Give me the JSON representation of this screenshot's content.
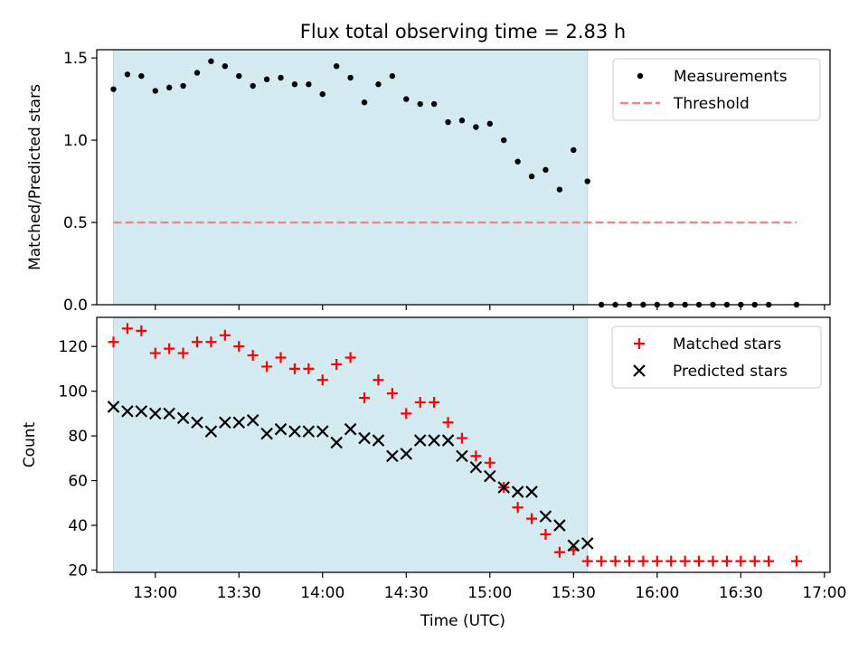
{
  "figure": {
    "title": "Flux total observing time = 2.83 h",
    "xlabel": "Time (UTC)",
    "x_ticks": [
      "13:00",
      "13:30",
      "14:00",
      "14:30",
      "15:00",
      "15:30",
      "16:00",
      "16:30",
      "17:00"
    ],
    "highlight_span": {
      "start": "12:45",
      "end": "15:35",
      "color": "#add8e6"
    }
  },
  "chart_data": [
    {
      "type": "scatter",
      "ylabel": "Matched/Predicted stars",
      "ylim": [
        0.0,
        1.55
      ],
      "xlim": [
        "12:39",
        "17:02"
      ],
      "y_ticks": [
        "0.0",
        "0.5",
        "1.0",
        "1.5"
      ],
      "legend_position": "top-right",
      "series": [
        {
          "name": "Measurements",
          "style": "dot",
          "color": "#000000",
          "points": [
            [
              "12:45",
              1.31
            ],
            [
              "12:50",
              1.4
            ],
            [
              "12:55",
              1.39
            ],
            [
              "13:00",
              1.3
            ],
            [
              "13:05",
              1.32
            ],
            [
              "13:10",
              1.33
            ],
            [
              "13:15",
              1.41
            ],
            [
              "13:20",
              1.48
            ],
            [
              "13:25",
              1.45
            ],
            [
              "13:30",
              1.39
            ],
            [
              "13:35",
              1.33
            ],
            [
              "13:40",
              1.37
            ],
            [
              "13:45",
              1.38
            ],
            [
              "13:50",
              1.34
            ],
            [
              "13:55",
              1.34
            ],
            [
              "14:00",
              1.28
            ],
            [
              "14:05",
              1.45
            ],
            [
              "14:10",
              1.38
            ],
            [
              "14:15",
              1.23
            ],
            [
              "14:20",
              1.34
            ],
            [
              "14:25",
              1.39
            ],
            [
              "14:30",
              1.25
            ],
            [
              "14:35",
              1.22
            ],
            [
              "14:40",
              1.22
            ],
            [
              "14:45",
              1.11
            ],
            [
              "14:50",
              1.12
            ],
            [
              "14:55",
              1.08
            ],
            [
              "15:00",
              1.1
            ],
            [
              "15:05",
              1.0
            ],
            [
              "15:10",
              0.87
            ],
            [
              "15:15",
              0.78
            ],
            [
              "15:20",
              0.82
            ],
            [
              "15:25",
              0.7
            ],
            [
              "15:30",
              0.94
            ],
            [
              "15:35",
              0.75
            ],
            [
              "15:40",
              0.0
            ],
            [
              "15:45",
              0.0
            ],
            [
              "15:50",
              0.0
            ],
            [
              "15:55",
              0.0
            ],
            [
              "16:00",
              0.0
            ],
            [
              "16:05",
              0.0
            ],
            [
              "16:10",
              0.0
            ],
            [
              "16:15",
              0.0
            ],
            [
              "16:20",
              0.0
            ],
            [
              "16:25",
              0.0
            ],
            [
              "16:30",
              0.0
            ],
            [
              "16:35",
              0.0
            ],
            [
              "16:40",
              0.0
            ],
            [
              "16:50",
              0.0
            ]
          ]
        },
        {
          "name": "Threshold",
          "style": "dashed-line",
          "color": "#ff8080",
          "points": [
            [
              "12:45",
              0.5
            ],
            [
              "16:50",
              0.5
            ]
          ]
        }
      ]
    },
    {
      "type": "scatter",
      "ylabel": "Count",
      "ylim": [
        19,
        133
      ],
      "xlim": [
        "12:39",
        "17:02"
      ],
      "y_ticks": [
        "20",
        "40",
        "60",
        "80",
        "100",
        "120"
      ],
      "legend_position": "top-right",
      "series": [
        {
          "name": "Matched stars",
          "style": "plus",
          "color": "#ff0000",
          "points": [
            [
              "12:45",
              122
            ],
            [
              "12:50",
              128
            ],
            [
              "12:55",
              127
            ],
            [
              "13:00",
              117
            ],
            [
              "13:05",
              119
            ],
            [
              "13:10",
              117
            ],
            [
              "13:15",
              122
            ],
            [
              "13:20",
              122
            ],
            [
              "13:25",
              125
            ],
            [
              "13:30",
              120
            ],
            [
              "13:35",
              116
            ],
            [
              "13:40",
              111
            ],
            [
              "13:45",
              115
            ],
            [
              "13:50",
              110
            ],
            [
              "13:55",
              110
            ],
            [
              "14:00",
              105
            ],
            [
              "14:05",
              112
            ],
            [
              "14:10",
              115
            ],
            [
              "14:15",
              97
            ],
            [
              "14:20",
              105
            ],
            [
              "14:25",
              99
            ],
            [
              "14:30",
              90
            ],
            [
              "14:35",
              95
            ],
            [
              "14:40",
              95
            ],
            [
              "14:45",
              86
            ],
            [
              "14:50",
              79
            ],
            [
              "14:55",
              71
            ],
            [
              "15:00",
              68
            ],
            [
              "15:05",
              57
            ],
            [
              "15:10",
              48
            ],
            [
              "15:15",
              43
            ],
            [
              "15:20",
              36
            ],
            [
              "15:25",
              28
            ],
            [
              "15:30",
              29
            ],
            [
              "15:35",
              24
            ],
            [
              "15:40",
              24
            ],
            [
              "15:45",
              24
            ],
            [
              "15:50",
              24
            ],
            [
              "15:55",
              24
            ],
            [
              "16:00",
              24
            ],
            [
              "16:05",
              24
            ],
            [
              "16:10",
              24
            ],
            [
              "16:15",
              24
            ],
            [
              "16:20",
              24
            ],
            [
              "16:25",
              24
            ],
            [
              "16:30",
              24
            ],
            [
              "16:35",
              24
            ],
            [
              "16:40",
              24
            ],
            [
              "16:50",
              24
            ]
          ]
        },
        {
          "name": "Predicted stars",
          "style": "x",
          "color": "#000000",
          "points": [
            [
              "12:45",
              93
            ],
            [
              "12:50",
              91
            ],
            [
              "12:55",
              91
            ],
            [
              "13:00",
              90
            ],
            [
              "13:05",
              90
            ],
            [
              "13:10",
              88
            ],
            [
              "13:15",
              86
            ],
            [
              "13:20",
              82
            ],
            [
              "13:25",
              86
            ],
            [
              "13:30",
              86
            ],
            [
              "13:35",
              87
            ],
            [
              "13:40",
              81
            ],
            [
              "13:45",
              83
            ],
            [
              "13:50",
              82
            ],
            [
              "13:55",
              82
            ],
            [
              "14:00",
              82
            ],
            [
              "14:05",
              77
            ],
            [
              "14:10",
              83
            ],
            [
              "14:15",
              79
            ],
            [
              "14:20",
              78
            ],
            [
              "14:25",
              71
            ],
            [
              "14:30",
              72
            ],
            [
              "14:35",
              78
            ],
            [
              "14:40",
              78
            ],
            [
              "14:45",
              78
            ],
            [
              "14:50",
              71
            ],
            [
              "14:55",
              66
            ],
            [
              "15:00",
              62
            ],
            [
              "15:05",
              57
            ],
            [
              "15:10",
              55
            ],
            [
              "15:15",
              55
            ],
            [
              "15:20",
              44
            ],
            [
              "15:25",
              40
            ],
            [
              "15:30",
              31
            ],
            [
              "15:35",
              32
            ]
          ]
        }
      ]
    }
  ]
}
